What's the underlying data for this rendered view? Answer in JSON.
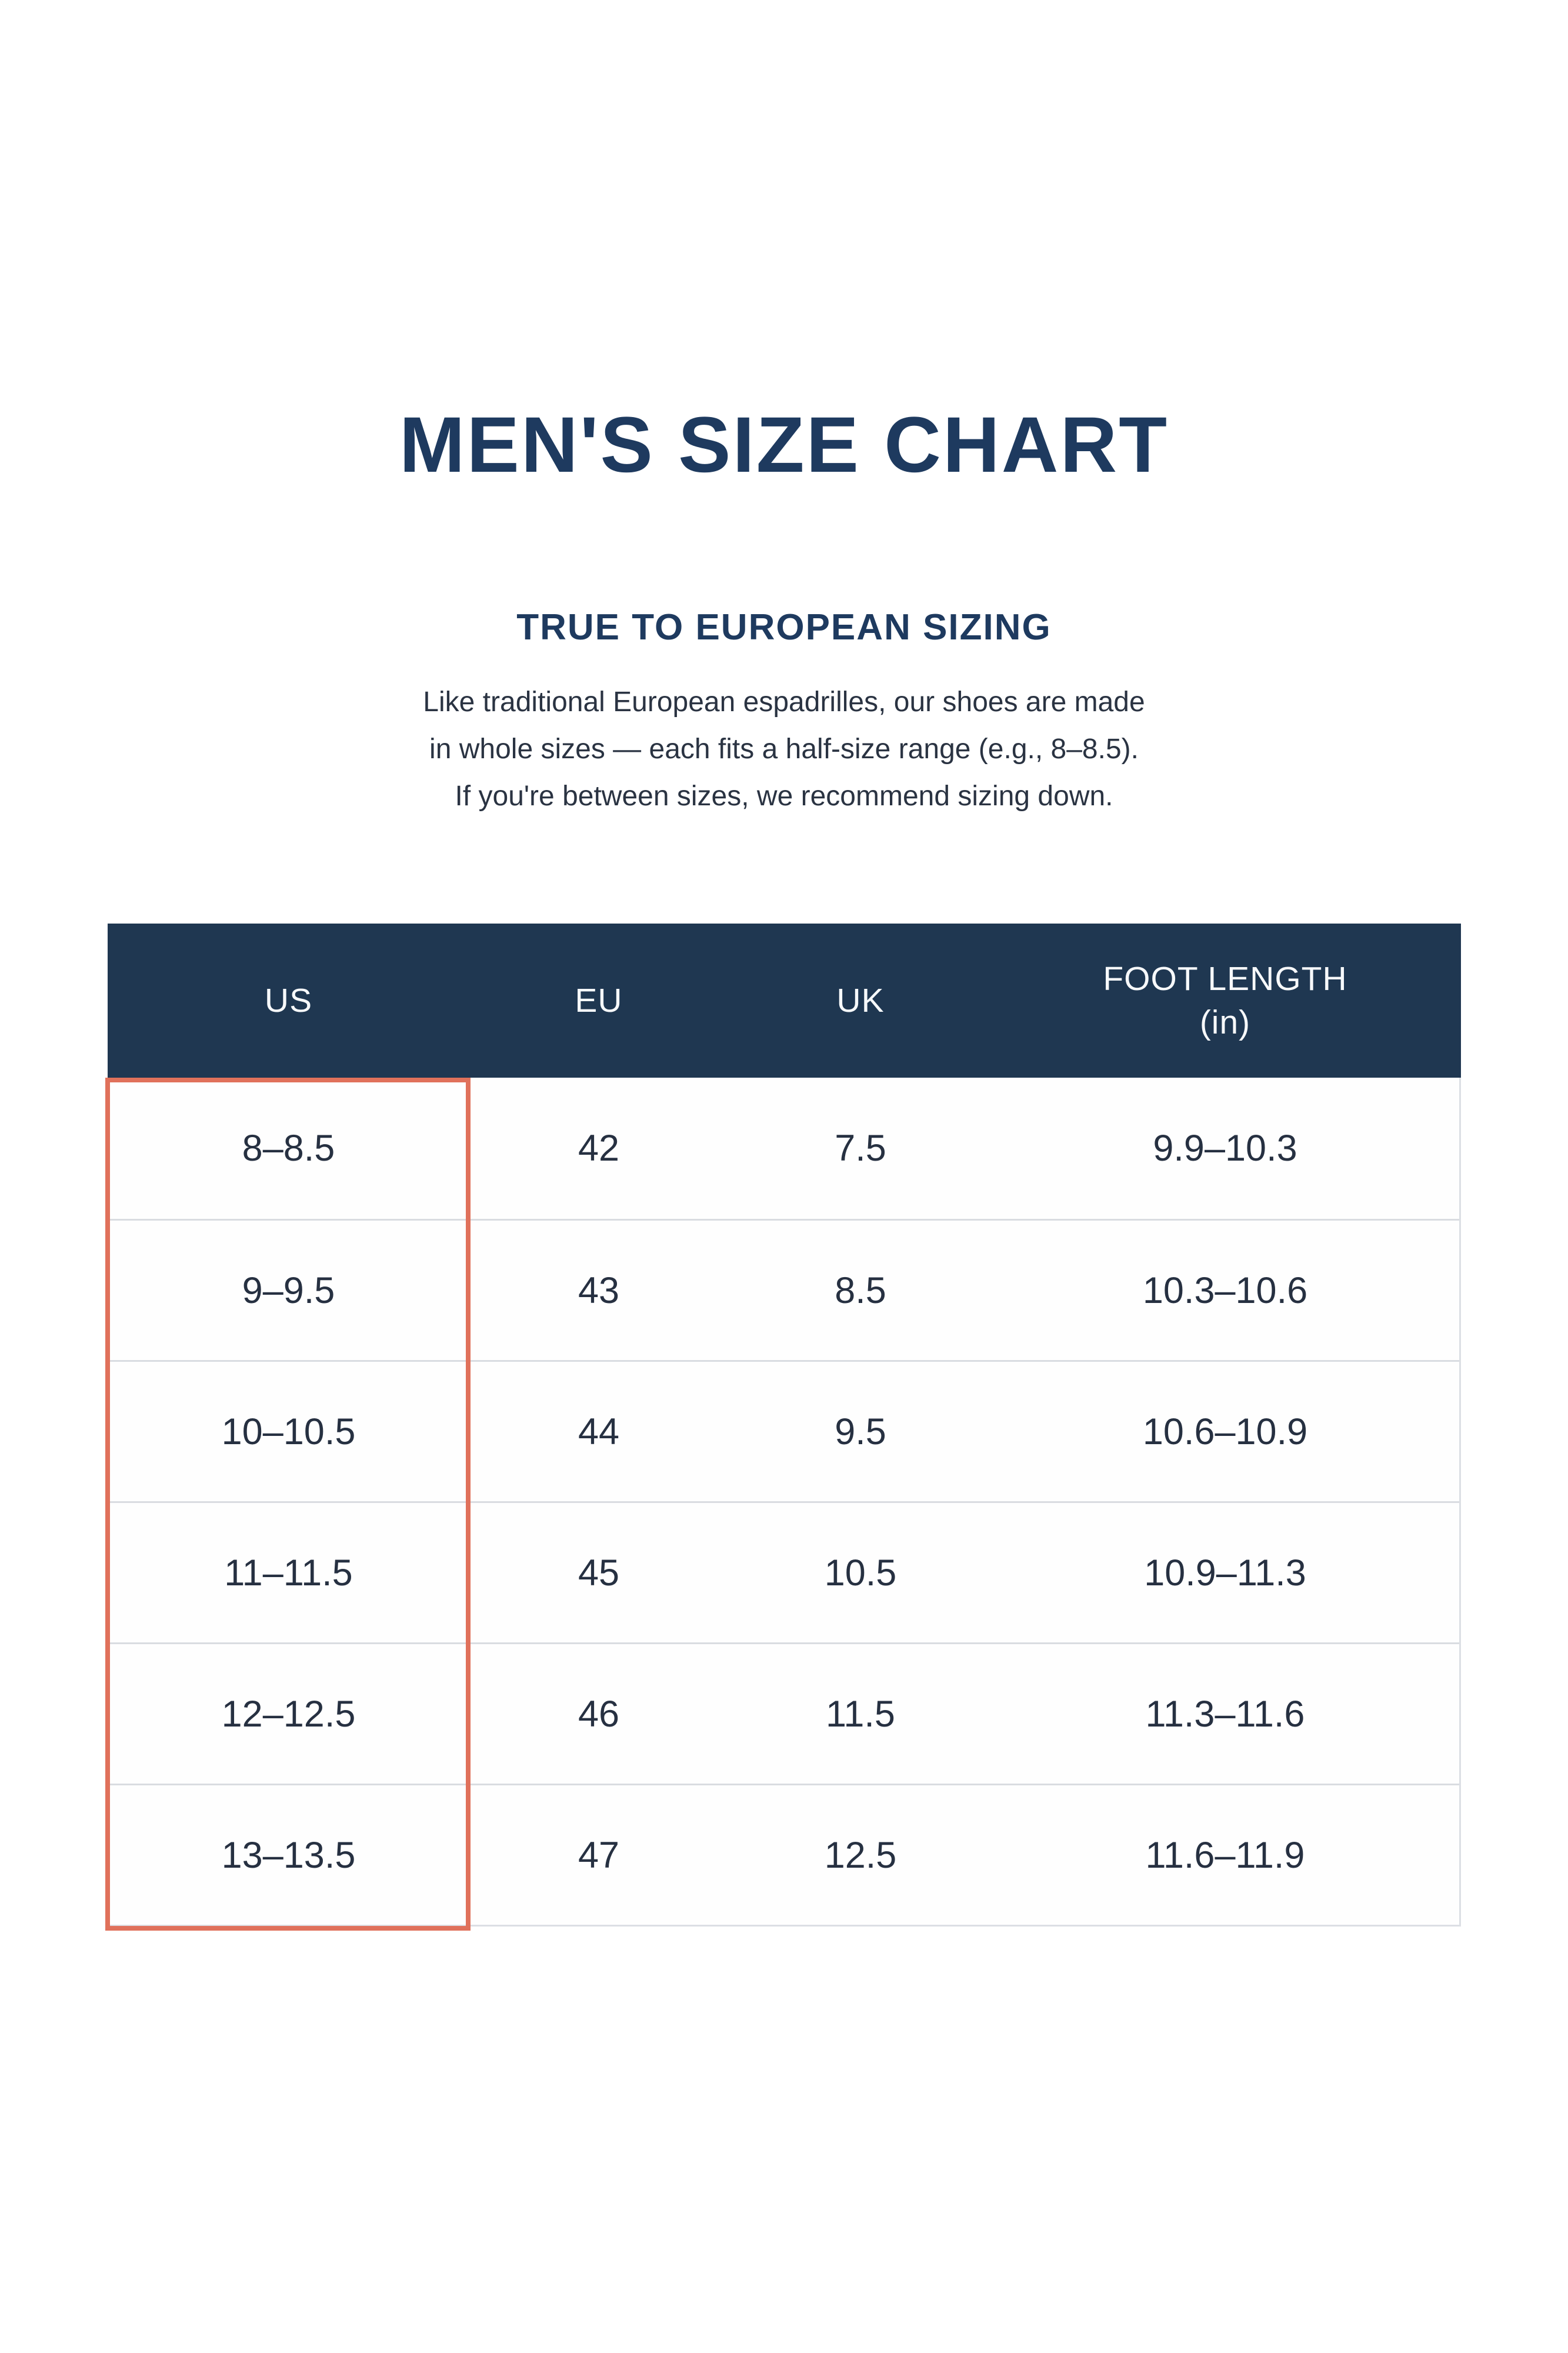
{
  "header": {
    "title": "MEN'S SIZE CHART",
    "subtitle": "TRUE TO EUROPEAN SIZING",
    "description": "Like traditional European espadrilles, our shoes are made\nin whole sizes — each fits a half-size range (e.g., 8–8.5).\nIf you're between sizes, we recommend sizing down."
  },
  "table": {
    "columns": [
      {
        "id": "us",
        "label": "US"
      },
      {
        "id": "eu",
        "label": "EU"
      },
      {
        "id": "uk",
        "label": "UK"
      },
      {
        "id": "foot_length_in",
        "label": "FOOT LENGTH\n(in)"
      }
    ],
    "rows": [
      {
        "cells": [
          "8–8.5",
          "42",
          "7.5",
          "9.9–10.3"
        ]
      },
      {
        "cells": [
          "9–9.5",
          "43",
          "8.5",
          "10.3–10.6"
        ]
      },
      {
        "cells": [
          "10–10.5",
          "44",
          "9.5",
          "10.6–10.9"
        ]
      },
      {
        "cells": [
          "11–11.5",
          "45",
          "10.5",
          "10.9–11.3"
        ]
      },
      {
        "cells": [
          "12–12.5",
          "46",
          "11.5",
          "11.3–11.6"
        ]
      },
      {
        "cells": [
          "13–13.5",
          "47",
          "12.5",
          "11.6–11.9"
        ]
      }
    ],
    "highlighted_column": "US"
  },
  "colors": {
    "background": "#ffffff",
    "heading_navy": "#1e3a5f",
    "table_header_bg": "#1f3751",
    "table_header_text": "#f7f9fb",
    "cell_text": "#263041",
    "row_divider": "#d9dce1",
    "table_border": "#dcdfe4",
    "highlight_orange": "#e0715b"
  },
  "chart_data": {
    "type": "table",
    "title": "MEN'S SIZE CHART",
    "subtitle": "TRUE TO EUROPEAN SIZING",
    "columns": [
      "US",
      "EU",
      "UK",
      "FOOT LENGTH (in)"
    ],
    "rows": [
      [
        "8–8.5",
        "42",
        "7.5",
        "9.9–10.3"
      ],
      [
        "9–9.5",
        "43",
        "8.5",
        "10.3–10.6"
      ],
      [
        "10–10.5",
        "44",
        "9.5",
        "10.6–10.9"
      ],
      [
        "11–11.5",
        "45",
        "10.5",
        "10.9–11.3"
      ],
      [
        "12–12.5",
        "46",
        "11.5",
        "11.3–11.6"
      ],
      [
        "13–13.5",
        "47",
        "12.5",
        "11.6–11.9"
      ]
    ],
    "annotations": [
      "US column outlined with orange highlight box"
    ],
    "legend_position": "none",
    "grid": "horizontal row dividers only"
  }
}
